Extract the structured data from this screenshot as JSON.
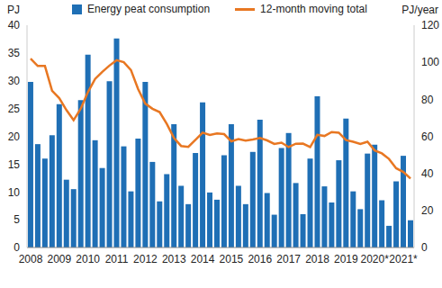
{
  "chart_data": {
    "type": "bar",
    "y_label": "PJ",
    "y2_label": "PJ/year",
    "categories": [
      "2008",
      null,
      null,
      null,
      "2009",
      null,
      null,
      null,
      "2010",
      null,
      null,
      null,
      "2011",
      null,
      null,
      null,
      "2012",
      null,
      null,
      null,
      "2013",
      null,
      null,
      null,
      "2014",
      null,
      null,
      null,
      "2015",
      null,
      null,
      null,
      "2016",
      null,
      null,
      null,
      "2017",
      null,
      null,
      null,
      "2018",
      null,
      null,
      null,
      "2019",
      null,
      null,
      null,
      "2020*",
      null,
      null,
      null,
      "2021*",
      null
    ],
    "series": [
      {
        "name": "Energy peat consumption",
        "type": "bar",
        "color": "#1f6fb5",
        "values": [
          29.8,
          18.6,
          16.0,
          20.2,
          25.8,
          12.2,
          10.5,
          26.5,
          34.7,
          19.3,
          14.3,
          29.9,
          37.6,
          18.2,
          10.1,
          19.6,
          29.8,
          15.4,
          8.3,
          13.2,
          22.2,
          11.1,
          7.8,
          17.0,
          26.1,
          9.9,
          8.6,
          16.6,
          22.2,
          11.1,
          7.8,
          17.2,
          23.0,
          9.8,
          5.9,
          17.9,
          20.6,
          11.6,
          6.0,
          16.0,
          27.2,
          11.0,
          8.1,
          15.7,
          23.2,
          10.1,
          6.9,
          16.9,
          18.5,
          8.5,
          3.9,
          11.9,
          16.5,
          4.9
        ]
      },
      {
        "name": "12-month moving total",
        "type": "line",
        "color": "#e87722",
        "axis": "y2",
        "values": [
          102.0,
          98.0,
          98.0,
          84.6,
          80.6,
          74.2,
          68.7,
          75.0,
          83.9,
          91.0,
          94.8,
          98.2,
          101.1,
          100.0,
          95.8,
          85.5,
          77.7,
          74.9,
          73.1,
          66.7,
          59.1,
          54.8,
          54.3,
          58.1,
          62.0,
          60.8,
          61.6,
          61.2,
          57.3,
          58.5,
          57.7,
          58.3,
          59.1,
          57.8,
          55.9,
          56.6,
          54.2,
          56.0,
          56.1,
          54.2,
          60.8,
          60.2,
          62.3,
          62.0,
          58.0,
          57.1,
          55.9,
          57.1,
          52.4,
          50.8,
          47.8,
          42.8,
          40.8,
          37.2
        ]
      }
    ],
    "ylim": [
      0,
      40
    ],
    "yticks": [
      0,
      5,
      10,
      15,
      20,
      25,
      30,
      35,
      40
    ],
    "y2lim": [
      0,
      120
    ],
    "y2ticks": [
      0,
      20,
      40,
      60,
      80,
      100,
      120
    ],
    "grid": false,
    "legend": "top"
  }
}
